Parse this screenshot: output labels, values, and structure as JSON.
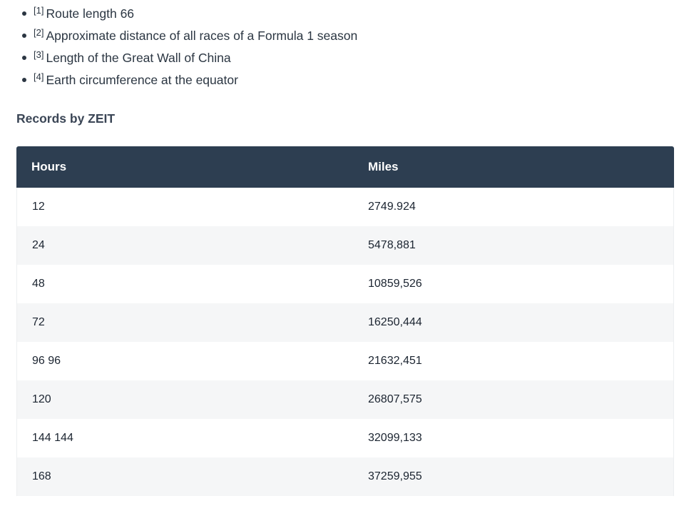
{
  "footnotes": [
    {
      "ref": "[1]",
      "text": "Route length 66"
    },
    {
      "ref": "[2]",
      "text": "Approximate distance of all races of a Formula 1 season"
    },
    {
      "ref": "[3]",
      "text": "Length of the Great Wall of China"
    },
    {
      "ref": "[4]",
      "text": "Earth circumference at the equator"
    }
  ],
  "records_title": "Records by ZEIT",
  "table": {
    "headers": [
      "Hours",
      "Miles"
    ],
    "rows": [
      [
        "12",
        "2749.924"
      ],
      [
        "24",
        "5478,881"
      ],
      [
        "48",
        "10859,526"
      ],
      [
        "72",
        "16250,444"
      ],
      [
        "96 96",
        "21632,451"
      ],
      [
        "120",
        "26807,575"
      ],
      [
        "144 144",
        "32099,133"
      ],
      [
        "168",
        "37259,955"
      ]
    ]
  }
}
